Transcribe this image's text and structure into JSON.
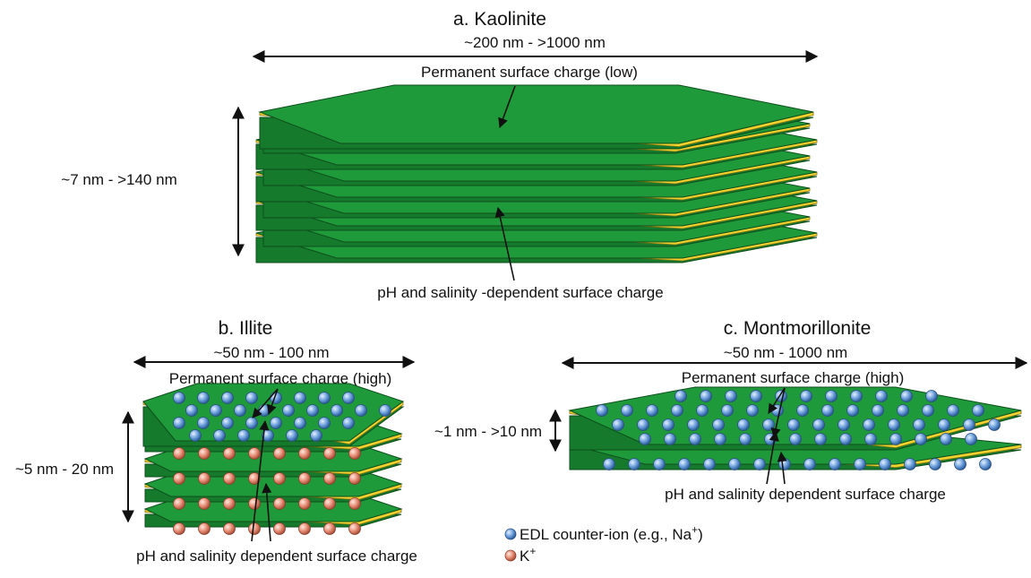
{
  "panels": {
    "kaolinite": {
      "title": "a. Kaolinite",
      "width_range": "~200 nm - >1000 nm",
      "height_range": "~7 nm - >140 nm",
      "top_label": "Permanent surface charge (low)",
      "bottom_label": "pH and salinity -dependent surface charge"
    },
    "illite": {
      "title": "b. Illite",
      "width_range": "~50 nm - 100 nm",
      "height_range": "~5 nm - 20 nm",
      "top_label": "Permanent surface charge (high)",
      "bottom_label": "pH and salinity dependent surface charge"
    },
    "montmorillonite": {
      "title": "c. Montmorillonite",
      "width_range": "~50 nm - 1000 nm",
      "height_range": "~1 nm - >10 nm",
      "top_label": "Permanent surface charge (high)",
      "bottom_label": "pH and salinity dependent surface charge"
    }
  },
  "legend": {
    "items": [
      {
        "label_prefix": "EDL counter-ion (e.g., Na",
        "label_sup": "+",
        "label_suffix": ")",
        "color": "#5b8fd0"
      },
      {
        "label_prefix": "K",
        "label_sup": "+",
        "label_suffix": "",
        "color": "#e8907a"
      }
    ]
  },
  "colors": {
    "sheet": "#1f9a3a",
    "edge": "#f2d22e",
    "ion_blue": "#5b8fd0",
    "ion_red": "#e8907a"
  }
}
